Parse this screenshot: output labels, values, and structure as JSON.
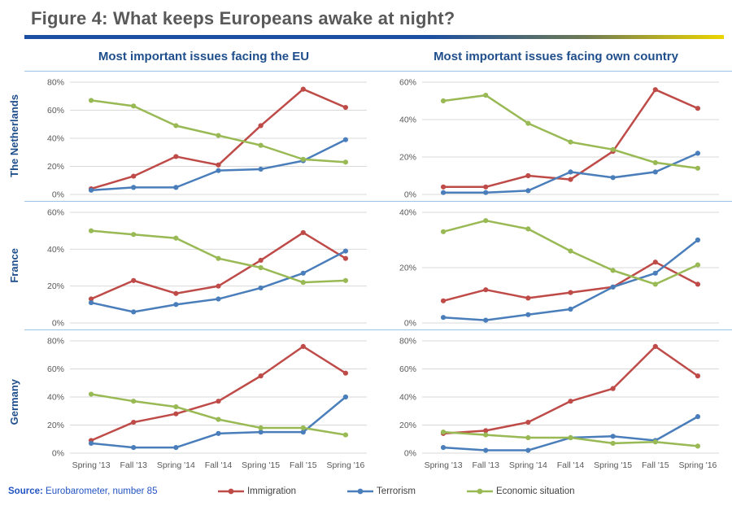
{
  "header": {
    "title": "Figure 4: What keeps Europeans awake at night?"
  },
  "columns": [
    {
      "label": "Most important issues facing the EU"
    },
    {
      "label": "Most important issues facing own country"
    }
  ],
  "rows": [
    {
      "label": "The Netherlands"
    },
    {
      "label": "France"
    },
    {
      "label": "Germany"
    }
  ],
  "footer": {
    "source_label": "Source:",
    "source_text": " Eurobarometer, number 85"
  },
  "legend": [
    {
      "name": "Immigration",
      "color": "#BE4B48"
    },
    {
      "name": "Terrorism",
      "color": "#4A7EBB"
    },
    {
      "name": "Economic situation",
      "color": "#98B954"
    }
  ],
  "colors": {
    "accent_dark_blue": "#1F4E8C",
    "title_gray": "#595959",
    "grid_line": "#D9D9D9",
    "row_divider": "#9DC3E6",
    "tick_label": "#595959",
    "source_blue": "#2353C2",
    "rule_gradient_start": "#1C4FA1",
    "rule_gradient_end": "#EDD500"
  },
  "chart_data": [
    {
      "id": "netherlands-eu",
      "type": "line",
      "row_label": "The Netherlands",
      "column_label": "Most important issues facing the EU",
      "x": [
        "Spring '13",
        "Fall '13",
        "Spring '14",
        "Fall '14",
        "Spring '15",
        "Fall '15",
        "Spring '16"
      ],
      "ylim": [
        0,
        80
      ],
      "yticks": [
        0,
        20,
        40,
        60,
        80
      ],
      "ytick_suffix": "%",
      "grid": true,
      "show_x_labels": false,
      "series": [
        {
          "name": "Immigration",
          "color": "#BE4B48",
          "values": [
            4,
            13,
            27,
            21,
            49,
            75,
            62
          ]
        },
        {
          "name": "Terrorism",
          "color": "#4A7EBB",
          "values": [
            3,
            5,
            5,
            17,
            18,
            24,
            39
          ]
        },
        {
          "name": "Economic situation",
          "color": "#98B954",
          "values": [
            67,
            63,
            49,
            42,
            35,
            25,
            23
          ]
        }
      ]
    },
    {
      "id": "netherlands-own",
      "type": "line",
      "row_label": "The Netherlands",
      "column_label": "Most important issues facing own country",
      "x": [
        "Spring '13",
        "Fall '13",
        "Spring '14",
        "Fall '14",
        "Spring '15",
        "Fall '15",
        "Spring '16"
      ],
      "ylim": [
        0,
        60
      ],
      "yticks": [
        0,
        20,
        40,
        60
      ],
      "ytick_suffix": "%",
      "grid": true,
      "show_x_labels": false,
      "series": [
        {
          "name": "Immigration",
          "color": "#BE4B48",
          "values": [
            4,
            4,
            10,
            8,
            23,
            56,
            46
          ]
        },
        {
          "name": "Terrorism",
          "color": "#4A7EBB",
          "values": [
            1,
            1,
            2,
            12,
            9,
            12,
            22
          ]
        },
        {
          "name": "Economic situation",
          "color": "#98B954",
          "values": [
            50,
            53,
            38,
            28,
            24,
            17,
            14
          ]
        }
      ]
    },
    {
      "id": "france-eu",
      "type": "line",
      "row_label": "France",
      "column_label": "Most important issues facing the EU",
      "x": [
        "Spring '13",
        "Fall '13",
        "Spring '14",
        "Fall '14",
        "Spring '15",
        "Fall '15",
        "Spring '16"
      ],
      "ylim": [
        0,
        60
      ],
      "yticks": [
        0,
        20,
        40,
        60
      ],
      "ytick_suffix": "%",
      "grid": true,
      "show_x_labels": false,
      "series": [
        {
          "name": "Immigration",
          "color": "#BE4B48",
          "values": [
            13,
            23,
            16,
            20,
            34,
            49,
            35
          ]
        },
        {
          "name": "Terrorism",
          "color": "#4A7EBB",
          "values": [
            11,
            6,
            10,
            13,
            19,
            27,
            39
          ]
        },
        {
          "name": "Economic situation",
          "color": "#98B954",
          "values": [
            50,
            48,
            46,
            35,
            30,
            22,
            23
          ]
        }
      ]
    },
    {
      "id": "france-own",
      "type": "line",
      "row_label": "France",
      "column_label": "Most important issues facing own country",
      "x": [
        "Spring '13",
        "Fall '13",
        "Spring '14",
        "Fall '14",
        "Spring '15",
        "Fall '15",
        "Spring '16"
      ],
      "ylim": [
        0,
        40
      ],
      "yticks": [
        0,
        20,
        40
      ],
      "ytick_suffix": "%",
      "grid": true,
      "show_x_labels": false,
      "series": [
        {
          "name": "Immigration",
          "color": "#BE4B48",
          "values": [
            8,
            12,
            9,
            11,
            13,
            22,
            14
          ]
        },
        {
          "name": "Terrorism",
          "color": "#4A7EBB",
          "values": [
            2,
            1,
            3,
            5,
            13,
            18,
            30
          ]
        },
        {
          "name": "Economic situation",
          "color": "#98B954",
          "values": [
            33,
            37,
            34,
            26,
            19,
            14,
            21
          ]
        }
      ]
    },
    {
      "id": "germany-eu",
      "type": "line",
      "row_label": "Germany",
      "column_label": "Most important issues facing the EU",
      "x": [
        "Spring '13",
        "Fall '13",
        "Spring '14",
        "Fall '14",
        "Spring '15",
        "Fall '15",
        "Spring '16"
      ],
      "ylim": [
        0,
        80
      ],
      "yticks": [
        0,
        20,
        40,
        60,
        80
      ],
      "ytick_suffix": "%",
      "grid": true,
      "show_x_labels": true,
      "series": [
        {
          "name": "Immigration",
          "color": "#BE4B48",
          "values": [
            9,
            22,
            28,
            37,
            55,
            76,
            57
          ]
        },
        {
          "name": "Terrorism",
          "color": "#4A7EBB",
          "values": [
            7,
            4,
            4,
            14,
            15,
            15,
            40
          ]
        },
        {
          "name": "Economic situation",
          "color": "#98B954",
          "values": [
            42,
            37,
            33,
            24,
            18,
            18,
            13
          ]
        }
      ]
    },
    {
      "id": "germany-own",
      "type": "line",
      "row_label": "Germany",
      "column_label": "Most important issues facing own country",
      "x": [
        "Spring '13",
        "Fall '13",
        "Spring '14",
        "Fall '14",
        "Spring '15",
        "Fall '15",
        "Spring '16"
      ],
      "ylim": [
        0,
        80
      ],
      "yticks": [
        0,
        20,
        40,
        60,
        80
      ],
      "ytick_suffix": "%",
      "grid": true,
      "show_x_labels": true,
      "series": [
        {
          "name": "Immigration",
          "color": "#BE4B48",
          "values": [
            14,
            16,
            22,
            37,
            46,
            76,
            55
          ]
        },
        {
          "name": "Terrorism",
          "color": "#4A7EBB",
          "values": [
            4,
            2,
            2,
            11,
            12,
            9,
            26
          ]
        },
        {
          "name": "Economic situation",
          "color": "#98B954",
          "values": [
            15,
            13,
            11,
            11,
            7,
            8,
            5
          ]
        }
      ]
    }
  ]
}
